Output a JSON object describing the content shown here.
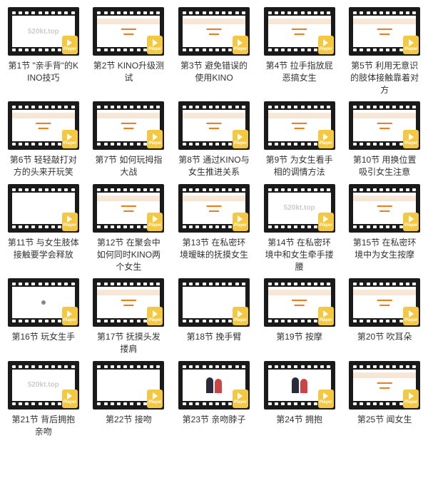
{
  "watermark": "520kt.top",
  "player_label": "Player",
  "videos": [
    {
      "title": "第1节 \"亲手背\"的KINO技巧",
      "thumb": "wm"
    },
    {
      "title": "第2节 KINO升级测试",
      "thumb": "doc"
    },
    {
      "title": "第3节 避免错误的使用KINO",
      "thumb": "doc"
    },
    {
      "title": "第4节 拉手指放屁恶搞女生",
      "thumb": "doc"
    },
    {
      "title": "第5节 利用无意识的肢体接触靠着对方",
      "thumb": "doc"
    },
    {
      "title": "第6节 轻轻敲打对方的头来开玩笑",
      "thumb": "doc"
    },
    {
      "title": "第7节 如何玩拇指大战",
      "thumb": "doc"
    },
    {
      "title": "第8节 通过KINO与女生推进关系",
      "thumb": "doc"
    },
    {
      "title": "第9节 为女生看手相的调情方法",
      "thumb": "doc"
    },
    {
      "title": "第10节 用换位置吸引女生注意",
      "thumb": "doc"
    },
    {
      "title": "第11节 与女生肢体接触要学会释放",
      "thumb": "blank"
    },
    {
      "title": "第12节 在聚会中如何同时KINO两个女生",
      "thumb": "doc"
    },
    {
      "title": "第13节 在私密环境暧昧的抚摸女生",
      "thumb": "doc"
    },
    {
      "title": "第14节 在私密环境中和女生牵手搂腰",
      "thumb": "wm"
    },
    {
      "title": "第15节 在私密环境中为女生按摩",
      "thumb": "doc"
    },
    {
      "title": "第16节 玩女生手",
      "thumb": "dot"
    },
    {
      "title": "第17节 抚摸头发搂肩",
      "thumb": "doc"
    },
    {
      "title": "第18节 挽手臂",
      "thumb": "blank"
    },
    {
      "title": "第19节 按摩",
      "thumb": "doc"
    },
    {
      "title": "第20节 吹耳朵",
      "thumb": "doc"
    },
    {
      "title": "第21节 背后拥抱亲吻",
      "thumb": "wm"
    },
    {
      "title": "第22节 接吻",
      "thumb": "blank"
    },
    {
      "title": "第23节 亲吻脖子",
      "thumb": "people"
    },
    {
      "title": "第24节 拥抱",
      "thumb": "people"
    },
    {
      "title": "第25节 闻女生",
      "thumb": "doc"
    }
  ]
}
